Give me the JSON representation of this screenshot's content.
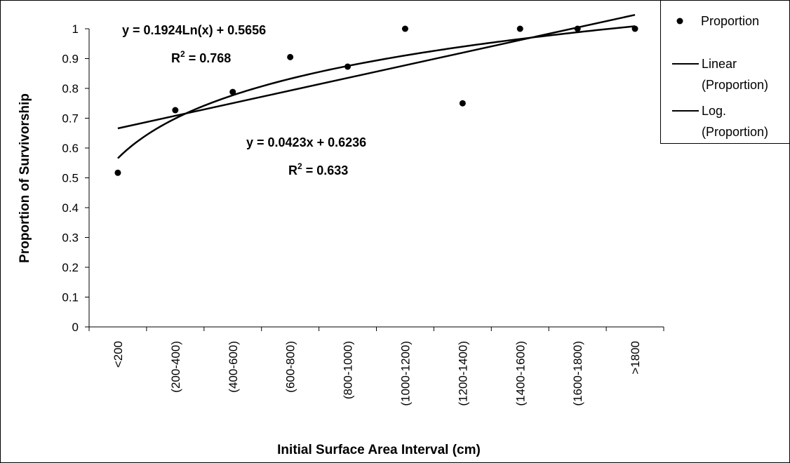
{
  "chart_data": {
    "type": "scatter",
    "xlabel": "Initial Surface Area Interval (cm)",
    "ylabel": "Proportion of Survivorship",
    "categories": [
      "<200",
      "(200-400)",
      "(400-600)",
      "(600-800)",
      "(800-1000)",
      "(1000-1200)",
      "(1200-1400)",
      "(1400-1600)",
      "(1600-1800)",
      ">1800"
    ],
    "ylim": [
      0,
      1
    ],
    "yticks": [
      "0",
      "0.1",
      "0.2",
      "0.3",
      "0.4",
      "0.5",
      "0.6",
      "0.7",
      "0.8",
      "0.9",
      "1"
    ],
    "grid": false,
    "legend_position": "top-right",
    "series": [
      {
        "name": "Proportion",
        "values": [
          0.517,
          0.727,
          0.788,
          0.905,
          0.873,
          1.0,
          0.75,
          1.0,
          1.0,
          1.0
        ]
      }
    ],
    "trendlines": [
      {
        "name": "Linear (Proportion)",
        "legend_line1": "Linear",
        "legend_line2": "(Proportion)",
        "kind": "linear",
        "slope": 0.0423,
        "intercept": 0.6236,
        "equation": "y = 0.0423x + 0.6236",
        "r2_prefix": "R",
        "r2_sup": "2",
        "r2_suffix": " = 0.633"
      },
      {
        "name": "Log. (Proportion)",
        "legend_line1": "Log.",
        "legend_line2": "(Proportion)",
        "kind": "log",
        "a": 0.1924,
        "b": 0.5656,
        "equation": "y = 0.1924Ln(x) + 0.5656",
        "r2_prefix": "R",
        "r2_sup": "2",
        "r2_suffix": " = 0.768"
      }
    ]
  }
}
